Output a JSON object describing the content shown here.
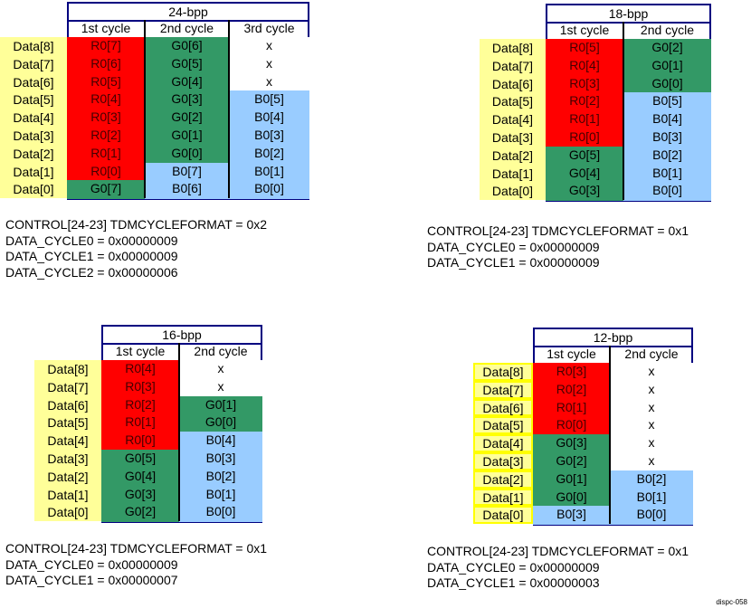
{
  "colors": {
    "R": "#ff0000",
    "G": "#339966",
    "B": "#99ccff",
    "x": "#ffffff",
    "label": "#ffff99",
    "border": "#000080"
  },
  "tables": [
    {
      "title": "24-bpp",
      "columns": [
        "1st cycle",
        "2nd cycle",
        "3rd cycle"
      ],
      "row_labels": [
        "Data[8]",
        "Data[7]",
        "Data[6]",
        "Data[5]",
        "Data[4]",
        "Data[3]",
        "Data[2]",
        "Data[1]",
        "Data[0]"
      ],
      "cells": [
        [
          "R0[7]",
          "R0[6]",
          "R0[5]",
          "R0[4]",
          "R0[3]",
          "R0[2]",
          "R0[1]",
          "R0[0]",
          "G0[7]"
        ],
        [
          "G0[6]",
          "G0[5]",
          "G0[4]",
          "G0[3]",
          "G0[2]",
          "G0[1]",
          "G0[0]",
          "B0[7]",
          "B0[6]"
        ],
        [
          "x",
          "x",
          "x",
          "B0[5]",
          "B0[4]",
          "B0[3]",
          "B0[2]",
          "B0[1]",
          "B0[0]"
        ]
      ],
      "notes": [
        "CONTROL[24-23] TDMCYCLEFORMAT = 0x2",
        "DATA_CYCLE0 = 0x00000009",
        "DATA_CYCLE1 = 0x00000009",
        "DATA_CYCLE2 = 0x00000006"
      ]
    },
    {
      "title": "18-bpp",
      "columns": [
        "1st cycle",
        "2nd cycle"
      ],
      "row_labels": [
        "Data[8]",
        "Data[7]",
        "Data[6]",
        "Data[5]",
        "Data[4]",
        "Data[3]",
        "Data[2]",
        "Data[1]",
        "Data[0]"
      ],
      "cells": [
        [
          "R0[5]",
          "R0[4]",
          "R0[3]",
          "R0[2]",
          "R0[1]",
          "R0[0]",
          "G0[5]",
          "G0[4]",
          "G0[3]"
        ],
        [
          "G0[2]",
          "G0[1]",
          "G0[0]",
          "B0[5]",
          "B0[4]",
          "B0[3]",
          "B0[2]",
          "B0[1]",
          "B0[0]"
        ]
      ],
      "notes": [
        "CONTROL[24-23] TDMCYCLEFORMAT = 0x1",
        "DATA_CYCLE0 = 0x00000009",
        "DATA_CYCLE1 = 0x00000009"
      ]
    },
    {
      "title": "16-bpp",
      "columns": [
        "1st cycle",
        "2nd cycle"
      ],
      "row_labels": [
        "Data[8]",
        "Data[7]",
        "Data[6]",
        "Data[5]",
        "Data[4]",
        "Data[3]",
        "Data[2]",
        "Data[1]",
        "Data[0]"
      ],
      "cells": [
        [
          "R0[4]",
          "R0[3]",
          "R0[2]",
          "R0[1]",
          "R0[0]",
          "G0[5]",
          "G0[4]",
          "G0[3]",
          "G0[2]"
        ],
        [
          "x",
          "x",
          "G0[1]",
          "G0[0]",
          "B0[4]",
          "B0[3]",
          "B0[2]",
          "B0[1]",
          "B0[0]"
        ]
      ],
      "notes": [
        "CONTROL[24-23] TDMCYCLEFORMAT = 0x1",
        "DATA_CYCLE0 = 0x00000009",
        "DATA_CYCLE1 = 0x00000007"
      ]
    },
    {
      "title": "12-bpp",
      "columns": [
        "1st cycle",
        "2nd cycle"
      ],
      "row_labels": [
        "Data[8]",
        "Data[7]",
        "Data[6]",
        "Data[5]",
        "Data[4]",
        "Data[3]",
        "Data[2]",
        "Data[1]",
        "Data[0]"
      ],
      "cells": [
        [
          "R0[3]",
          "R0[2]",
          "R0[1]",
          "R0[0]",
          "G0[3]",
          "G0[2]",
          "G0[1]",
          "G0[0]",
          "B0[3]"
        ],
        [
          "x",
          "x",
          "x",
          "x",
          "x",
          "x",
          "B0[2]",
          "B0[1]",
          "B0[0]"
        ]
      ],
      "notes": [
        "CONTROL[24-23] TDMCYCLEFORMAT = 0x1",
        "DATA_CYCLE0 = 0x00000009",
        "DATA_CYCLE1 = 0x00000003"
      ]
    }
  ],
  "figure_id": "dispc-058"
}
